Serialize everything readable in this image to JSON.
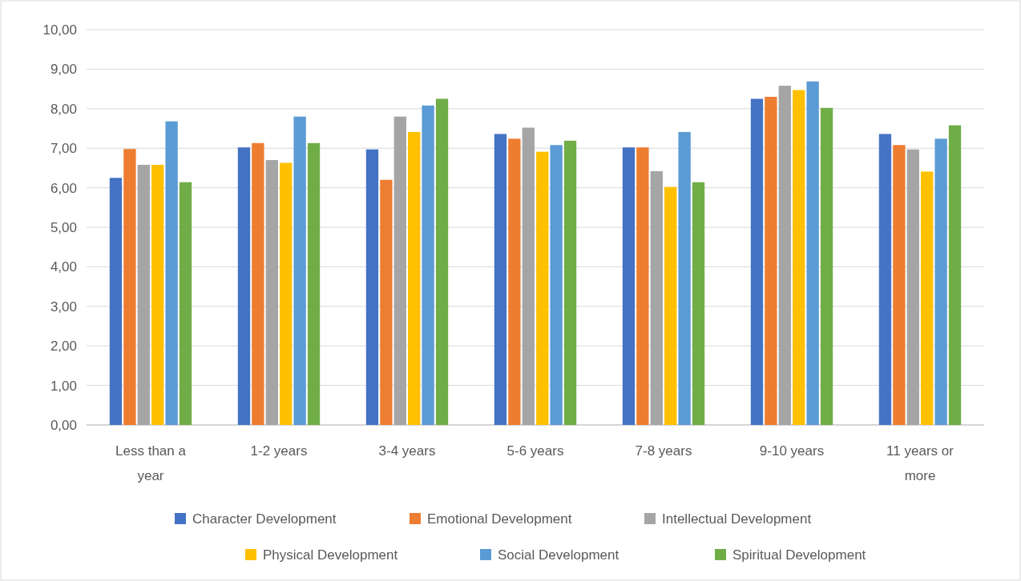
{
  "chart_data": {
    "type": "bar",
    "categories": [
      "Less than a year",
      "1-2 years",
      "3-4 years",
      "5-6 years",
      "7-8 years",
      "9-10 years",
      "11 years or more"
    ],
    "series": [
      {
        "name": "Character Development",
        "color": "#4472c4",
        "values": [
          6.25,
          7.02,
          6.97,
          7.36,
          7.02,
          8.25,
          7.36
        ]
      },
      {
        "name": "Emotional Development",
        "color": "#ed7d31",
        "values": [
          6.98,
          7.13,
          6.2,
          7.24,
          7.02,
          8.3,
          7.08
        ]
      },
      {
        "name": "Intellectual Development",
        "color": "#a5a5a5",
        "values": [
          6.58,
          6.7,
          7.8,
          7.52,
          6.42,
          8.58,
          6.97
        ]
      },
      {
        "name": "Physical Development",
        "color": "#ffc000",
        "values": [
          6.58,
          6.63,
          7.41,
          6.91,
          6.02,
          8.47,
          6.41
        ]
      },
      {
        "name": "Social Development",
        "color": "#5b9bd5",
        "values": [
          7.68,
          7.8,
          8.08,
          7.08,
          7.41,
          8.69,
          7.24
        ]
      },
      {
        "name": "Spiritual Development",
        "color": "#70ad47",
        "values": [
          6.14,
          7.13,
          8.25,
          7.19,
          6.14,
          8.02,
          7.58
        ]
      }
    ],
    "ylim": [
      0,
      10
    ],
    "yticks": [
      {
        "value": 0,
        "label": "0,00"
      },
      {
        "value": 1,
        "label": "1,00"
      },
      {
        "value": 2,
        "label": "2,00"
      },
      {
        "value": 3,
        "label": "3,00"
      },
      {
        "value": 4,
        "label": "4,00"
      },
      {
        "value": 5,
        "label": "5,00"
      },
      {
        "value": 6,
        "label": "6,00"
      },
      {
        "value": 7,
        "label": "7,00"
      },
      {
        "value": 8,
        "label": "8,00"
      },
      {
        "value": 9,
        "label": "9,00"
      },
      {
        "value": 10,
        "label": "10,00"
      }
    ],
    "grid": "y",
    "legend": "bottom"
  }
}
